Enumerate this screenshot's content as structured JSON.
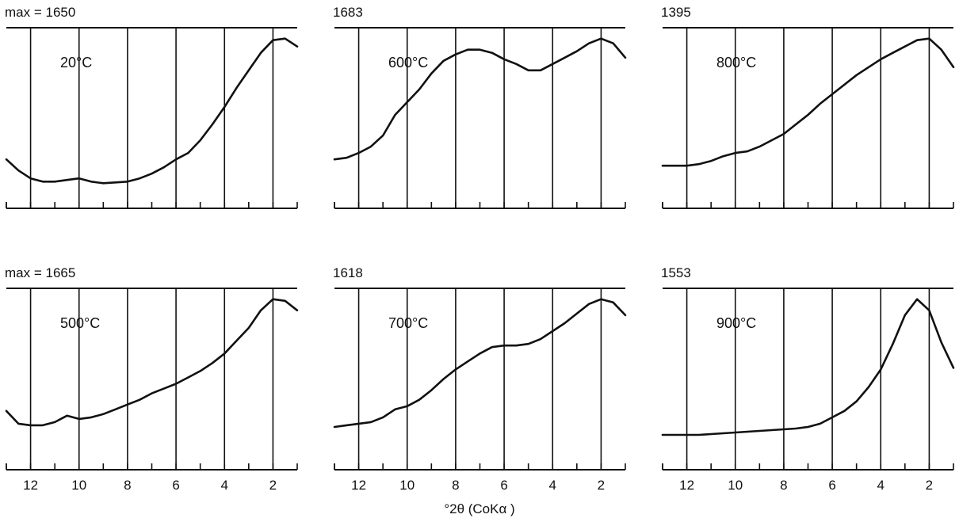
{
  "chart_data": [
    {
      "type": "line",
      "max_label": "max = 1650",
      "temperature": "20°C",
      "x": [
        13,
        12.5,
        12,
        11.5,
        11,
        10.5,
        10,
        9.5,
        9,
        8.5,
        8,
        7.5,
        7,
        6.5,
        6,
        5.5,
        5,
        4.5,
        4,
        3.5,
        3,
        2.5,
        2,
        1.5,
        1
      ],
      "y": [
        0.24,
        0.17,
        0.12,
        0.1,
        0.1,
        0.11,
        0.12,
        0.1,
        0.09,
        0.095,
        0.1,
        0.12,
        0.15,
        0.19,
        0.24,
        0.28,
        0.36,
        0.46,
        0.57,
        0.69,
        0.8,
        0.91,
        0.99,
        1.0,
        0.95
      ],
      "ylim": [
        0,
        1
      ]
    },
    {
      "type": "line",
      "max_label": "1683",
      "temperature": "600°C",
      "x": [
        13,
        12.5,
        12,
        11.5,
        11,
        10.5,
        10,
        9.5,
        9,
        8.5,
        8,
        7.5,
        7,
        6.5,
        6,
        5.5,
        5,
        4.5,
        4,
        3.5,
        3,
        2.5,
        2,
        1.5,
        1
      ],
      "y": [
        0.24,
        0.25,
        0.28,
        0.32,
        0.39,
        0.52,
        0.6,
        0.68,
        0.78,
        0.86,
        0.9,
        0.93,
        0.93,
        0.91,
        0.87,
        0.84,
        0.8,
        0.8,
        0.84,
        0.88,
        0.92,
        0.97,
        1.0,
        0.97,
        0.88
      ],
      "ylim": [
        0,
        1
      ]
    },
    {
      "type": "line",
      "max_label": "1395",
      "temperature": "800°C",
      "x": [
        13,
        12.5,
        12,
        11.5,
        11,
        10.5,
        10,
        9.5,
        9,
        8.5,
        8,
        7.5,
        7,
        6.5,
        6,
        5.5,
        5,
        4.5,
        4,
        3.5,
        3,
        2.5,
        2,
        1.5,
        1
      ],
      "y": [
        0.2,
        0.2,
        0.2,
        0.21,
        0.23,
        0.26,
        0.28,
        0.29,
        0.32,
        0.36,
        0.4,
        0.46,
        0.52,
        0.59,
        0.65,
        0.71,
        0.77,
        0.82,
        0.87,
        0.91,
        0.95,
        0.99,
        1.0,
        0.93,
        0.82
      ],
      "ylim": [
        0,
        1
      ]
    },
    {
      "type": "line",
      "max_label": "max = 1665",
      "temperature": "500°C",
      "x": [
        13,
        12.5,
        12,
        11.5,
        11,
        10.5,
        10,
        9.5,
        9,
        8.5,
        8,
        7.5,
        7,
        6.5,
        6,
        5.5,
        5,
        4.5,
        4,
        3.5,
        3,
        2.5,
        2,
        1.5,
        1
      ],
      "y": [
        0.3,
        0.22,
        0.21,
        0.21,
        0.23,
        0.27,
        0.25,
        0.26,
        0.28,
        0.31,
        0.34,
        0.37,
        0.41,
        0.44,
        0.47,
        0.51,
        0.55,
        0.6,
        0.66,
        0.74,
        0.82,
        0.93,
        1.0,
        0.99,
        0.93
      ],
      "ylim": [
        0,
        1
      ]
    },
    {
      "type": "line",
      "max_label": "1618",
      "temperature": "700°C",
      "x": [
        13,
        12.5,
        12,
        11.5,
        11,
        10.5,
        10,
        9.5,
        9,
        8.5,
        8,
        7.5,
        7,
        6.5,
        6,
        5.5,
        5,
        4.5,
        4,
        3.5,
        3,
        2.5,
        2,
        1.5,
        1
      ],
      "y": [
        0.2,
        0.21,
        0.22,
        0.23,
        0.26,
        0.31,
        0.33,
        0.37,
        0.43,
        0.5,
        0.56,
        0.61,
        0.66,
        0.7,
        0.71,
        0.71,
        0.72,
        0.75,
        0.8,
        0.85,
        0.91,
        0.97,
        1.0,
        0.98,
        0.9
      ],
      "ylim": [
        0,
        1
      ]
    },
    {
      "type": "line",
      "max_label": "1553",
      "temperature": "900°C",
      "x": [
        13,
        12.5,
        12,
        11.5,
        11,
        10.5,
        10,
        9.5,
        9,
        8.5,
        8,
        7.5,
        7,
        6.5,
        6,
        5.5,
        5,
        4.5,
        4,
        3.5,
        3,
        2.5,
        2,
        1.5,
        1
      ],
      "y": [
        0.15,
        0.15,
        0.15,
        0.15,
        0.155,
        0.16,
        0.165,
        0.17,
        0.175,
        0.18,
        0.185,
        0.19,
        0.2,
        0.22,
        0.26,
        0.3,
        0.36,
        0.45,
        0.56,
        0.72,
        0.9,
        1.0,
        0.93,
        0.73,
        0.57
      ],
      "ylim": [
        0,
        1
      ]
    }
  ],
  "axis": {
    "xlim": [
      13,
      1
    ],
    "gridlines": [
      12,
      10,
      8,
      6,
      4,
      2
    ],
    "minor_ticks": [
      13,
      12,
      11,
      10,
      9,
      8,
      7,
      6,
      5,
      4,
      3,
      2,
      1
    ],
    "tick_labels": [
      "12",
      "10",
      "8",
      "6",
      "4",
      "2"
    ],
    "xlabel": "°2θ (CoKα )"
  }
}
